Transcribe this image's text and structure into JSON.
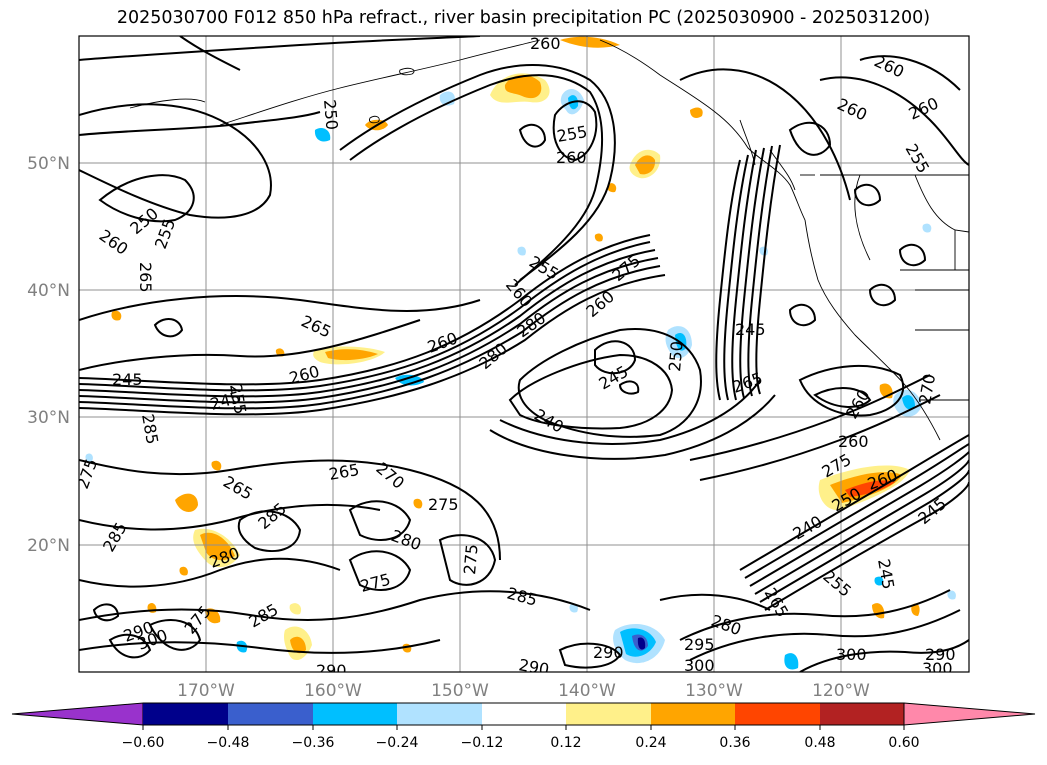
{
  "title": "2025030700 F012 850 hPa refract., river basin precipitation PC (2025030900 - 2025031200)",
  "map": {
    "lat_labels": [
      "50°N",
      "40°N",
      "30°N",
      "20°N"
    ],
    "lon_labels": [
      "170°W",
      "160°W",
      "150°W",
      "140°W",
      "130°W",
      "120°W"
    ],
    "contour_labels": [
      {
        "text": "260"
      },
      {
        "text": "260"
      },
      {
        "text": "260"
      },
      {
        "text": "260"
      },
      {
        "text": "255"
      },
      {
        "text": "255"
      },
      {
        "text": "260"
      },
      {
        "text": "250"
      },
      {
        "text": "255"
      },
      {
        "text": "260"
      },
      {
        "text": "265"
      },
      {
        "text": "255"
      },
      {
        "text": "260"
      },
      {
        "text": "275"
      },
      {
        "text": "265"
      },
      {
        "text": "260"
      },
      {
        "text": "280"
      },
      {
        "text": "280"
      },
      {
        "text": "260"
      },
      {
        "text": "245"
      },
      {
        "text": "250"
      },
      {
        "text": "245"
      },
      {
        "text": "260"
      },
      {
        "text": "245"
      },
      {
        "text": "255"
      },
      {
        "text": "285"
      },
      {
        "text": "245"
      },
      {
        "text": "240"
      },
      {
        "text": "265"
      },
      {
        "text": "260"
      },
      {
        "text": "270"
      },
      {
        "text": "260"
      },
      {
        "text": "275"
      },
      {
        "text": "275"
      },
      {
        "text": "265"
      },
      {
        "text": "270"
      },
      {
        "text": "265"
      },
      {
        "text": "275"
      },
      {
        "text": "285"
      },
      {
        "text": "280"
      },
      {
        "text": "280"
      },
      {
        "text": "285"
      },
      {
        "text": "275"
      },
      {
        "text": "275"
      },
      {
        "text": "285"
      },
      {
        "text": "275"
      },
      {
        "text": "285"
      },
      {
        "text": "280"
      },
      {
        "text": "260"
      },
      {
        "text": "250"
      },
      {
        "text": "240"
      },
      {
        "text": "245"
      },
      {
        "text": "265"
      },
      {
        "text": "255"
      },
      {
        "text": "245"
      },
      {
        "text": "290"
      },
      {
        "text": "295"
      },
      {
        "text": "290"
      },
      {
        "text": "300"
      },
      {
        "text": "300"
      },
      {
        "text": "290"
      },
      {
        "text": "300"
      },
      {
        "text": "290"
      },
      {
        "text": "300"
      },
      {
        "text": "290"
      },
      {
        "text": "250"
      }
    ]
  },
  "colorbar": {
    "colors": [
      "#9932cc",
      "#00008b",
      "#3a5fcd",
      "#00bfff",
      "#b0e2ff",
      "#ffffff",
      "#fff08a",
      "#ffa500",
      "#ff4500",
      "#b22222",
      "#ff88aa"
    ],
    "ticks": [
      "−0.60",
      "−0.48",
      "−0.36",
      "−0.24",
      "−0.12",
      "0.12",
      "0.24",
      "0.36",
      "0.48",
      "0.60"
    ]
  }
}
